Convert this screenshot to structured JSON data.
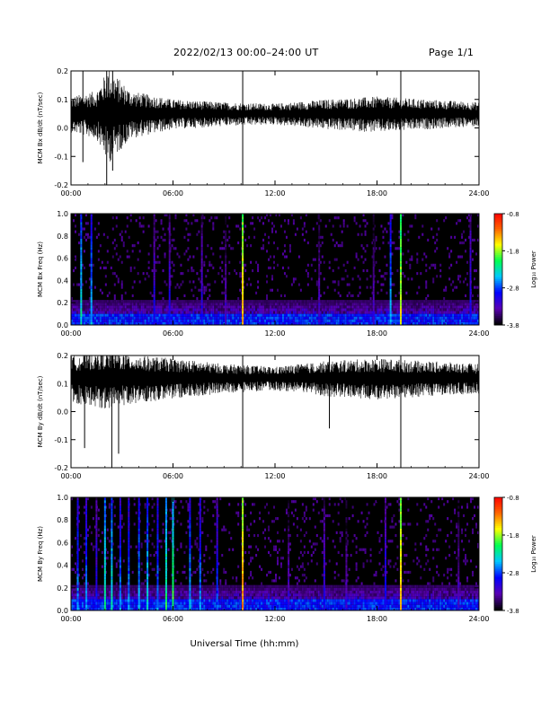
{
  "header": {
    "title": "2022/02/13  00:00–24:00 UT",
    "page": "Page 1/1"
  },
  "xaxis_label": "Universal Time (hh:mm)",
  "time_ticks": [
    "00:00",
    "06:00",
    "12:00",
    "18:00",
    "24:00"
  ],
  "colorbar": {
    "label": "Log₁₀ Power",
    "ticks": [
      "-0.8",
      "-1.8",
      "-2.8",
      "-3.8"
    ],
    "range": [
      -3.8,
      -0.8
    ],
    "colors": [
      "#000000",
      "#5a00b4",
      "#0000ff",
      "#00c8ff",
      "#00ff50",
      "#ffff00",
      "#ff6400",
      "#ff0000"
    ]
  },
  "chart_data": [
    {
      "type": "line",
      "name": "bx-dbdt",
      "ylabel": "MCM Bx dB/dt (nT/sec)",
      "xlim": [
        0,
        24
      ],
      "ylim": [
        -0.2,
        0.2
      ],
      "yticks": [
        "0.2",
        "0.1",
        "0.0",
        "-0.1",
        "-0.2"
      ],
      "baseline": 0.05,
      "noise_amplitude": [
        [
          0,
          0.06
        ],
        [
          1.5,
          0.08
        ],
        [
          2.2,
          0.16
        ],
        [
          3.5,
          0.08
        ],
        [
          6,
          0.05
        ],
        [
          9,
          0.04
        ],
        [
          12,
          0.035
        ],
        [
          15,
          0.05
        ],
        [
          18,
          0.06
        ],
        [
          21,
          0.05
        ],
        [
          24,
          0.04
        ]
      ],
      "spikes": [
        {
          "t": 0.7,
          "min": -0.12,
          "max": 0.2
        },
        {
          "t": 2.1,
          "min": -0.2,
          "max": 0.2
        },
        {
          "t": 2.45,
          "min": -0.15,
          "max": 0.2
        },
        {
          "t": 10.1,
          "min": -0.2,
          "max": 0.2
        },
        {
          "t": 19.4,
          "min": -0.2,
          "max": 0.2
        }
      ]
    },
    {
      "type": "heatmap",
      "name": "bx-spectrogram",
      "ylabel": "MCM Bx Freq (Hz)",
      "xlim": [
        0,
        24
      ],
      "ylim": [
        0,
        1.0
      ],
      "yticks": [
        "1.0",
        "0.8",
        "0.6",
        "0.4",
        "0.2",
        "0.0"
      ],
      "zlim": [
        -3.8,
        -0.8
      ],
      "background_level": -3.8,
      "low_freq_level": -2.9,
      "broadband_lines": [
        {
          "t": 0.6,
          "level": -2.3
        },
        {
          "t": 1.2,
          "level": -2.5
        },
        {
          "t": 4.9,
          "level": -3.0
        },
        {
          "t": 5.8,
          "level": -3.0
        },
        {
          "t": 7.7,
          "level": -3.0
        },
        {
          "t": 9.1,
          "level": -3.2
        },
        {
          "t": 10.1,
          "level": -1.4
        },
        {
          "t": 14.6,
          "level": -3.2
        },
        {
          "t": 17.8,
          "level": -3.2
        },
        {
          "t": 18.8,
          "level": -2.5
        },
        {
          "t": 19.4,
          "level": -1.6
        },
        {
          "t": 23.5,
          "level": -2.9
        }
      ]
    },
    {
      "type": "line",
      "name": "by-dbdt",
      "ylabel": "MCM By dB/dt (nT/sec)",
      "xlim": [
        0,
        24
      ],
      "ylim": [
        -0.2,
        0.2
      ],
      "yticks": [
        "0.2",
        "0.1",
        "0.0",
        "-0.1",
        "-0.2"
      ],
      "baseline": 0.12,
      "noise_amplitude": [
        [
          0,
          0.08
        ],
        [
          2,
          0.1
        ],
        [
          4,
          0.08
        ],
        [
          6,
          0.07
        ],
        [
          9,
          0.05
        ],
        [
          12,
          0.04
        ],
        [
          15,
          0.06
        ],
        [
          18,
          0.07
        ],
        [
          21,
          0.06
        ],
        [
          24,
          0.05
        ]
      ],
      "spikes": [
        {
          "t": 0.8,
          "min": -0.13,
          "max": 0.2
        },
        {
          "t": 2.4,
          "min": -0.2,
          "max": 0.2
        },
        {
          "t": 2.8,
          "min": -0.15,
          "max": 0.2
        },
        {
          "t": 10.1,
          "min": -0.2,
          "max": 0.2
        },
        {
          "t": 15.2,
          "min": -0.06,
          "max": 0.2
        },
        {
          "t": 19.4,
          "min": -0.2,
          "max": 0.2
        }
      ]
    },
    {
      "type": "heatmap",
      "name": "by-spectrogram",
      "ylabel": "MCM By Freq (Hz)",
      "xlim": [
        0,
        24
      ],
      "ylim": [
        0,
        1.0
      ],
      "yticks": [
        "1.0",
        "0.8",
        "0.6",
        "0.4",
        "0.2",
        "0.0"
      ],
      "zlim": [
        -3.8,
        -0.8
      ],
      "background_level": -3.8,
      "low_freq_level": -2.9,
      "broadband_lines": [
        {
          "t": 0.4,
          "level": -2.6
        },
        {
          "t": 0.9,
          "level": -2.6
        },
        {
          "t": 1.5,
          "level": -2.9
        },
        {
          "t": 2.0,
          "level": -2.2
        },
        {
          "t": 2.4,
          "level": -2.3
        },
        {
          "t": 2.9,
          "level": -2.6
        },
        {
          "t": 3.4,
          "level": -2.6
        },
        {
          "t": 4.0,
          "level": -2.5
        },
        {
          "t": 4.5,
          "level": -2.4
        },
        {
          "t": 5.1,
          "level": -2.6
        },
        {
          "t": 5.6,
          "level": -2.1
        },
        {
          "t": 6.0,
          "level": -2.0
        },
        {
          "t": 7.0,
          "level": -2.5
        },
        {
          "t": 7.6,
          "level": -2.6
        },
        {
          "t": 8.6,
          "level": -2.8
        },
        {
          "t": 10.1,
          "level": -1.3
        },
        {
          "t": 12.8,
          "level": -3.2
        },
        {
          "t": 14.9,
          "level": -3.0
        },
        {
          "t": 16.2,
          "level": -3.2
        },
        {
          "t": 18.5,
          "level": -2.9
        },
        {
          "t": 19.4,
          "level": -1.4
        },
        {
          "t": 22.8,
          "level": -3.2
        }
      ]
    }
  ]
}
